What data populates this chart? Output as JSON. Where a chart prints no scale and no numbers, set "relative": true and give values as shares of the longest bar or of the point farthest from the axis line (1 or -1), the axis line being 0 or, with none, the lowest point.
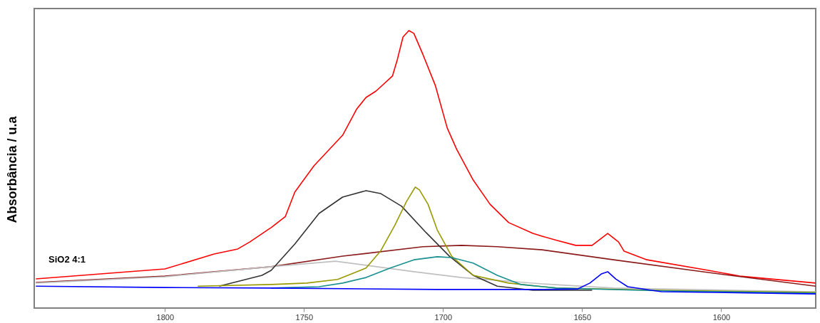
{
  "chart_data": {
    "type": "line",
    "ylabel": "Absorbância / u.a",
    "relative": true,
    "xlim": [
      1847,
      1566
    ],
    "xticks": [
      1800,
      1750,
      1700,
      1650,
      1600
    ],
    "annotations": [
      "SiO2 4:1"
    ],
    "series": [
      {
        "color": "#ff0000",
        "x": [
          1846.4,
          1800,
          1782.3,
          1773.8,
          1769.5,
          1762.6,
          1761.8,
          1756.7,
          1753.3,
          1746.4,
          1736.1,
          1731,
          1727.7,
          1724.1,
          1718.2,
          1716.4,
          1714.4,
          1712.3,
          1710.5,
          1707.2,
          1702.8,
          1698.5,
          1695.1,
          1689.2,
          1683.1,
          1676.4,
          1667.7,
          1664.4,
          1659.2,
          1652.3,
          1646.4,
          1640.8,
          1636.9,
          1634.9,
          1626.7,
          1604.6,
          1593.3,
          1566
        ],
        "values": [
          0.105,
          0.141,
          0.195,
          0.213,
          0.238,
          0.285,
          0.29,
          0.33,
          0.418,
          0.513,
          0.623,
          0.718,
          0.759,
          0.782,
          0.836,
          0.897,
          0.977,
          1,
          0.99,
          0.913,
          0.803,
          0.649,
          0.572,
          0.462,
          0.374,
          0.308,
          0.269,
          0.259,
          0.244,
          0.226,
          0.226,
          0.269,
          0.238,
          0.205,
          0.174,
          0.136,
          0.115,
          0.09
        ]
      },
      {
        "color": "#8b1a1a",
        "x": [
          1846.4,
          1800,
          1761.8,
          1736.1,
          1707.2,
          1693.3,
          1680.5,
          1664.4,
          1638.7,
          1604.6,
          1566
        ],
        "values": [
          0.092,
          0.115,
          0.149,
          0.187,
          0.221,
          0.226,
          0.221,
          0.21,
          0.174,
          0.128,
          0.079
        ]
      },
      {
        "color": "#c0c0c0",
        "x": [
          1846.4,
          1800,
          1761.8,
          1738.7,
          1710.5,
          1693.3,
          1664.4,
          1638.7,
          1566
        ],
        "values": [
          0.09,
          0.113,
          0.149,
          0.169,
          0.131,
          0.11,
          0.087,
          0.072,
          0.059
        ]
      },
      {
        "color": "#333333",
        "x": [
          1780.5,
          1765.1,
          1761.8,
          1753.3,
          1744.6,
          1736.1,
          1727.7,
          1722.5,
          1714.9,
          1706.1,
          1697.7,
          1689.2,
          1680.5,
          1667.7,
          1646.4
        ],
        "values": [
          0.079,
          0.118,
          0.136,
          0.231,
          0.341,
          0.4,
          0.423,
          0.413,
          0.367,
          0.272,
          0.187,
          0.118,
          0.079,
          0.064,
          0.064
        ]
      },
      {
        "color": "#999900",
        "x": [
          1788.2,
          1761.8,
          1749,
          1737.9,
          1727.7,
          1722.5,
          1717.4,
          1713.1,
          1710,
          1708.5,
          1705.4,
          1702.1,
          1696.9,
          1689.2,
          1676.4,
          1659.2,
          1621.5,
          1566
        ],
        "values": [
          0.079,
          0.085,
          0.09,
          0.103,
          0.144,
          0.205,
          0.297,
          0.385,
          0.436,
          0.426,
          0.374,
          0.282,
          0.187,
          0.118,
          0.09,
          0.072,
          0.064,
          0.056
        ]
      },
      {
        "color": "#1a9090",
        "x": [
          1761.8,
          1744.6,
          1736.1,
          1727.7,
          1719,
          1710.5,
          1702.1,
          1696.9,
          1689.2,
          1680.5,
          1672.1,
          1659.2,
          1621.5,
          1566
        ],
        "values": [
          0.072,
          0.077,
          0.09,
          0.11,
          0.144,
          0.174,
          0.185,
          0.182,
          0.162,
          0.118,
          0.085,
          0.072,
          0.062,
          0.054
        ]
      },
      {
        "color": "#0000ff",
        "x": [
          1846.4,
          1800,
          1761.8,
          1702.1,
          1664.4,
          1651.5,
          1647.2,
          1643.1,
          1640.8,
          1637.9,
          1633.6,
          1621.5,
          1566
        ],
        "values": [
          0.079,
          0.074,
          0.072,
          0.067,
          0.067,
          0.069,
          0.09,
          0.123,
          0.131,
          0.105,
          0.077,
          0.059,
          0.051
        ]
      }
    ]
  }
}
